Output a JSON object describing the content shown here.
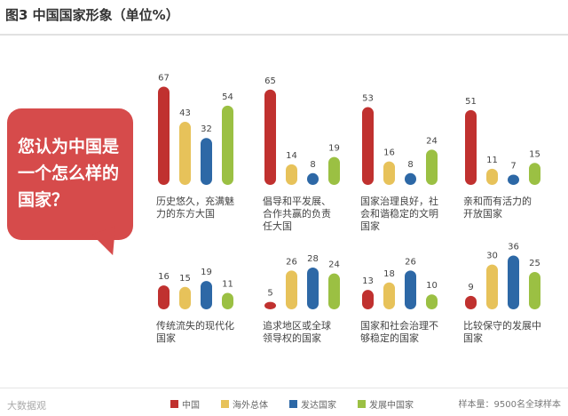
{
  "title": "图3 中国国家形象（单位%）",
  "question": [
    "您认为中国是",
    "一个怎么样的",
    "国家？"
  ],
  "colors": {
    "china": "#c0312f",
    "overseas": "#e7c25a",
    "developed": "#2d68a6",
    "developing": "#9bc043"
  },
  "legend": [
    "中国",
    "海外总体",
    "发达国家",
    "发展中国家"
  ],
  "sample_note": "样本量：9500名全球样本",
  "watermark": "大数据观",
  "chart_data": {
    "type": "bar",
    "series_names": [
      "中国",
      "海外总体",
      "发达国家",
      "发展中国家"
    ],
    "groups": [
      {
        "label": [
          "历史悠久，充满魅",
          "力的东方大国"
        ],
        "values": [
          67,
          43,
          32,
          54
        ]
      },
      {
        "label": [
          "倡导和平发展、",
          "合作共赢的负责",
          "任大国"
        ],
        "values": [
          65,
          14,
          8,
          19
        ]
      },
      {
        "label": [
          "国家治理良好，社",
          "会和谐稳定的文明",
          "国家"
        ],
        "values": [
          53,
          16,
          8,
          24
        ]
      },
      {
        "label": [
          "亲和而有活力的",
          "开放国家"
        ],
        "values": [
          51,
          11,
          7,
          15
        ]
      },
      {
        "label": [
          "传统流失的现代化",
          "国家"
        ],
        "values": [
          16,
          15,
          19,
          11
        ]
      },
      {
        "label": [
          "追求地区或全球",
          "领导权的国家"
        ],
        "values": [
          5,
          26,
          28,
          24
        ]
      },
      {
        "label": [
          "国家和社会治理不",
          "够稳定的国家"
        ],
        "values": [
          13,
          18,
          26,
          10
        ]
      },
      {
        "label": [
          "比较保守的发展中",
          "国家"
        ],
        "values": [
          9,
          30,
          36,
          25
        ]
      }
    ]
  }
}
